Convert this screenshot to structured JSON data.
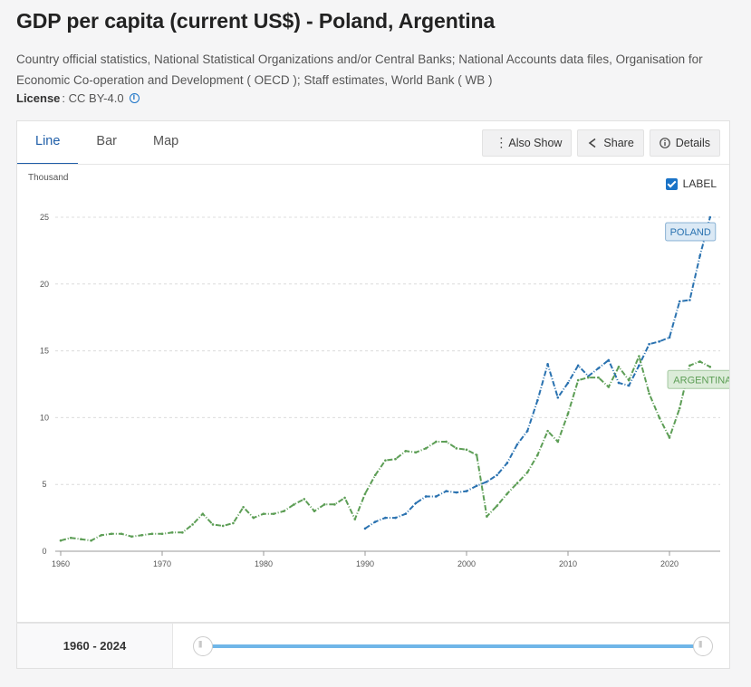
{
  "page": {
    "title": "GDP per capita (current US$) - Poland, Argentina",
    "source": "Country official statistics, National Statistical Organizations and/or Central Banks; National Accounts data files, Organisation for Economic Co-operation and Development ( OECD ); Staff estimates, World Bank ( WB )",
    "license_label": "License",
    "license_value": ": CC BY-4.0"
  },
  "tabs": [
    "Line",
    "Bar",
    "Map"
  ],
  "toolbar": {
    "also_show": "Also Show",
    "share": "Share",
    "details": "Details"
  },
  "label_toggle": "LABEL",
  "range": {
    "start": "1960",
    "sep": " - ",
    "end": "2024"
  },
  "colors": {
    "poland": "#2a72b0",
    "argentina": "#5d9e56",
    "accent": "#1f5ea8"
  },
  "chart_data": {
    "type": "line",
    "title": "GDP per capita (current US$) - Poland, Argentina",
    "ylabel": "Thousand",
    "xlabel": "",
    "xlim": [
      1960,
      2024
    ],
    "ylim": [
      0,
      25
    ],
    "x_ticks": [
      1960,
      1970,
      1980,
      1990,
      2000,
      2010,
      2020
    ],
    "y_ticks": [
      0,
      5,
      10,
      15,
      20,
      25
    ],
    "grid": true,
    "series": [
      {
        "name": "POLAND",
        "x": [
          1990,
          1991,
          1992,
          1993,
          1994,
          1995,
          1996,
          1997,
          1998,
          1999,
          2000,
          2001,
          2002,
          2003,
          2004,
          2005,
          2006,
          2007,
          2008,
          2009,
          2010,
          2011,
          2012,
          2013,
          2014,
          2015,
          2016,
          2017,
          2018,
          2019,
          2020,
          2021,
          2022,
          2023,
          2024
        ],
        "values": [
          1.7,
          2.2,
          2.5,
          2.5,
          2.8,
          3.6,
          4.1,
          4.1,
          4.5,
          4.4,
          4.5,
          4.9,
          5.2,
          5.7,
          6.6,
          8.0,
          9.0,
          11.3,
          14.0,
          11.5,
          12.6,
          13.9,
          13.1,
          13.7,
          14.3,
          12.6,
          12.4,
          13.9,
          15.5,
          15.7,
          16.0,
          18.7,
          18.8,
          22.1,
          25.0
        ]
      },
      {
        "name": "ARGENTINA",
        "x": [
          1960,
          1961,
          1962,
          1963,
          1964,
          1965,
          1966,
          1967,
          1968,
          1969,
          1970,
          1971,
          1972,
          1973,
          1974,
          1975,
          1976,
          1977,
          1978,
          1979,
          1980,
          1981,
          1982,
          1983,
          1984,
          1985,
          1986,
          1987,
          1988,
          1989,
          1990,
          1991,
          1992,
          1993,
          1994,
          1995,
          1996,
          1997,
          1998,
          1999,
          2000,
          2001,
          2002,
          2003,
          2004,
          2005,
          2006,
          2007,
          2008,
          2009,
          2010,
          2011,
          2012,
          2013,
          2014,
          2015,
          2016,
          2017,
          2018,
          2019,
          2020,
          2021,
          2022,
          2023,
          2024
        ],
        "values": [
          0.8,
          1.0,
          0.9,
          0.8,
          1.2,
          1.3,
          1.3,
          1.1,
          1.2,
          1.3,
          1.3,
          1.4,
          1.4,
          2.0,
          2.8,
          2.0,
          1.9,
          2.1,
          3.3,
          2.5,
          2.8,
          2.8,
          3.0,
          3.5,
          3.9,
          3.0,
          3.5,
          3.5,
          4.0,
          2.4,
          4.3,
          5.7,
          6.8,
          6.9,
          7.5,
          7.4,
          7.7,
          8.2,
          8.2,
          7.7,
          7.6,
          7.2,
          2.6,
          3.4,
          4.3,
          5.1,
          5.9,
          7.2,
          9.0,
          8.2,
          10.3,
          12.8,
          13.0,
          13.0,
          12.3,
          13.8,
          12.8,
          14.6,
          11.8,
          10.0,
          8.5,
          10.7,
          13.9,
          14.2,
          13.8
        ]
      }
    ]
  }
}
